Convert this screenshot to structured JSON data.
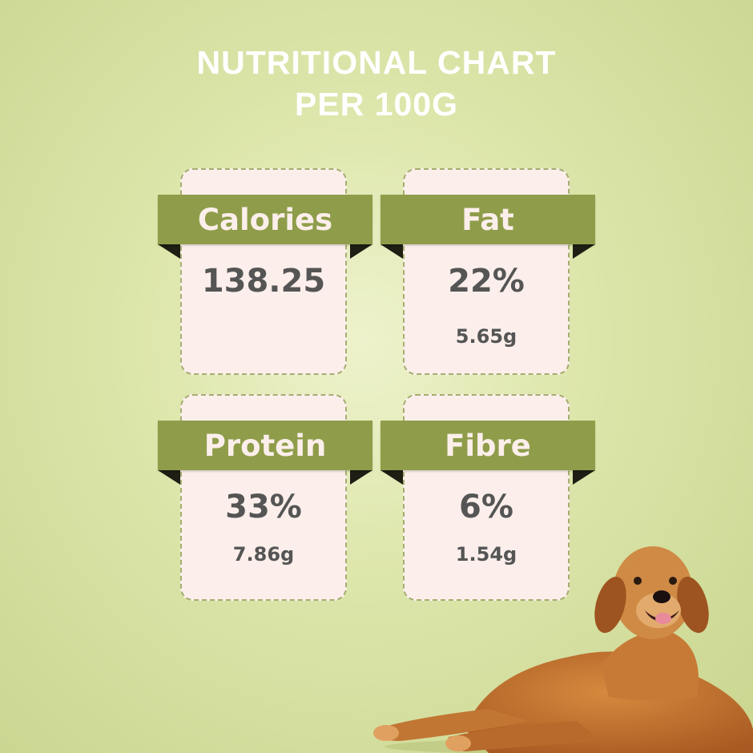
{
  "title": {
    "line1": "NUTRITIONAL CHART",
    "line2": "PER 100G"
  },
  "colors": {
    "ribbon": "#8f9d4a",
    "card": "#fcefeb",
    "text": "#555555",
    "title": "#ffffff"
  },
  "nutrients": [
    {
      "label": "Calories",
      "value": "138.25",
      "amount": ""
    },
    {
      "label": "Fat",
      "value": "22%",
      "amount": "5.65g"
    },
    {
      "label": "Protein",
      "value": "33%",
      "amount": "7.86g"
    },
    {
      "label": "Fibre",
      "value": "6%",
      "amount": "1.54g"
    }
  ],
  "image": {
    "subject": "golden-retriever-dog"
  }
}
